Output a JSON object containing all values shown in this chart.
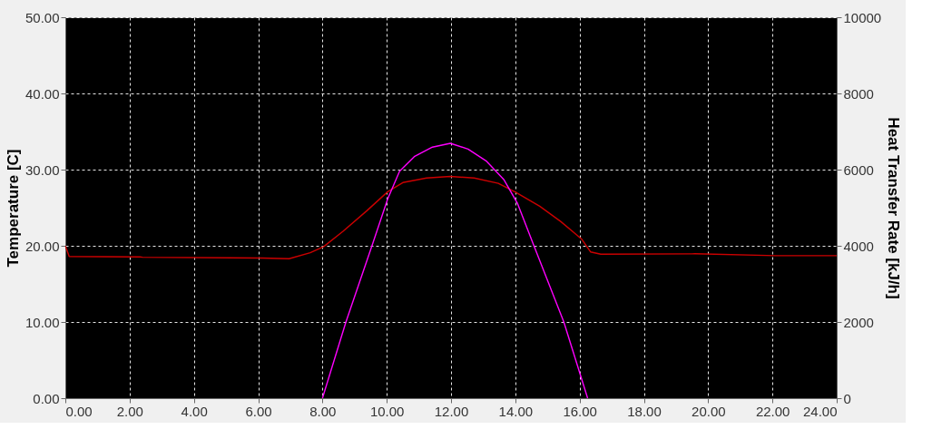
{
  "chart_data": {
    "type": "line",
    "xlabel": null,
    "ylabel": "Temperature [C]",
    "y2label": "Heat Transfer Rate [kJ/h]",
    "xlim": [
      0,
      24
    ],
    "xticks": [
      {
        "value": 0,
        "label": "0.00"
      },
      {
        "value": 2,
        "label": "2.00"
      },
      {
        "value": 4,
        "label": "4.00"
      },
      {
        "value": 6,
        "label": "6.00"
      },
      {
        "value": 8,
        "label": "8.00"
      },
      {
        "value": 10,
        "label": "10.00"
      },
      {
        "value": 12,
        "label": "12.00"
      },
      {
        "value": 14,
        "label": "14.00"
      },
      {
        "value": 16,
        "label": "16.00"
      },
      {
        "value": 18,
        "label": "18.00"
      },
      {
        "value": 20,
        "label": "20.00"
      },
      {
        "value": 22,
        "label": "22.00"
      },
      {
        "value": 24,
        "label": "24.00"
      }
    ],
    "ylim": [
      0,
      50
    ],
    "yticks": [
      {
        "value": 0,
        "label": "0.00"
      },
      {
        "value": 10,
        "label": "10.00"
      },
      {
        "value": 20,
        "label": "20.00"
      },
      {
        "value": 30,
        "label": "30.00"
      },
      {
        "value": 40,
        "label": "40.00"
      },
      {
        "value": 50,
        "label": "50.00"
      }
    ],
    "y2lim": [
      0,
      10000
    ],
    "y2ticks": [
      0,
      2000,
      4000,
      6000,
      8000,
      10000
    ],
    "grid": true,
    "line_style": "solid",
    "marker": "none",
    "series": [
      {
        "color": "#cc0000",
        "x": [
          0,
          0.12,
          2.32,
          2.4,
          6.12,
          6.96,
          7.62,
          8.04,
          8.64,
          9.38,
          10.03,
          10.5,
          11.24,
          11.98,
          12.72,
          13.47,
          14.02,
          14.76,
          15.41,
          16.06,
          16.34,
          16.66,
          19.59,
          22.1,
          24
        ],
        "values": [
          20.0,
          18.6,
          18.55,
          18.5,
          18.4,
          18.3,
          19.1,
          19.9,
          21.9,
          24.6,
          27.1,
          28.3,
          28.9,
          29.1,
          28.9,
          28.2,
          27.0,
          25.2,
          23.2,
          20.9,
          19.2,
          18.9,
          18.95,
          18.7,
          18.7
        ]
      },
      {
        "color": "#ff00ff",
        "axis": "y2",
        "x": [
          8.0,
          8.73,
          9.54,
          10.03,
          10.4,
          10.87,
          11.42,
          11.98,
          12.53,
          13.09,
          13.65,
          14.07,
          14.58,
          15.51,
          16.25
        ],
        "values": [
          0,
          2000,
          4000,
          5230,
          5960,
          6350,
          6590,
          6690,
          6540,
          6230,
          5730,
          5110,
          4000,
          2000,
          0
        ]
      }
    ]
  }
}
